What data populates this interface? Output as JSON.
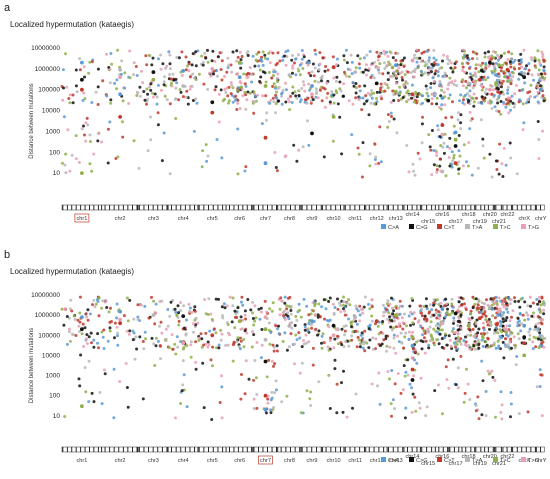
{
  "colors": {
    "C>A": "#5b9bd5",
    "C>G": "#111111",
    "C>T": "#c0392b",
    "T>A": "#b8b8b8",
    "T>C": "#8fb04a",
    "T>G": "#e8a0b4",
    "highlight": "#c0392b"
  },
  "chart_data": [
    {
      "panel_letter": "a",
      "type": "scatter",
      "title": "Localized hypermutation (kataegis)",
      "xlabel": "",
      "ylabel": "Distance between mutations",
      "y_scale": "log",
      "ylim": [
        1,
        10000000
      ],
      "y_ticks": [
        "10000000",
        "1000000",
        "100000",
        "10000",
        "1000",
        "100",
        "10"
      ],
      "legend_position": "bottom-right",
      "legend": [
        "C>A",
        "C>G",
        "C>T",
        "T>A",
        "T>C",
        "T>G"
      ],
      "categories": [
        "chr1",
        "chr2",
        "chr3",
        "chr4",
        "chr5",
        "chr6",
        "chr7",
        "chr8",
        "chr9",
        "chr10",
        "chr11",
        "chr12",
        "chr13",
        "chr14",
        "chr15",
        "chr16",
        "chr17",
        "chr18",
        "chr19",
        "chr20",
        "chr21",
        "chr22",
        "chrX",
        "chrY"
      ],
      "highlighted_category": "chr1",
      "series": [
        {
          "name": "C>A",
          "x": [
            "chr1",
            "chr2",
            "chr4",
            "chr6",
            "chr7",
            "chr9",
            "chr13",
            "chr16",
            "chr17",
            "chrY"
          ],
          "values": [
            2000000,
            60000,
            800000,
            400000,
            30,
            150000,
            1500000,
            40000,
            900,
            100000
          ]
        },
        {
          "name": "C>G",
          "x": [
            "chr1",
            "chr3",
            "chr5",
            "chr9",
            "chr12",
            "chr15",
            "chr17",
            "chr20",
            "chrX"
          ],
          "values": [
            300000,
            700000,
            25000,
            800,
            200000,
            30000,
            200,
            2000000,
            400000
          ]
        },
        {
          "name": "C>T",
          "x": [
            "chr1",
            "chr2",
            "chr5",
            "chr7",
            "chr10",
            "chr14",
            "chr16",
            "chr17",
            "chr19",
            "chr22"
          ],
          "values": [
            100000,
            5000,
            8000,
            500,
            1200000,
            60000,
            2000,
            30,
            300000,
            900000
          ]
        },
        {
          "name": "T>A",
          "x": [
            "chr2",
            "chr4",
            "chr8",
            "chr11",
            "chr16",
            "chr18",
            "chrX"
          ],
          "values": [
            900000,
            150000,
            500000,
            700000,
            12,
            200000,
            600000
          ]
        },
        {
          "name": "T>C",
          "x": [
            "chr1",
            "chr3",
            "chr6",
            "chr7",
            "chr10",
            "chr13",
            "chr17",
            "chr21"
          ],
          "values": [
            10,
            300000,
            2000000,
            150000,
            5000,
            80000,
            400,
            1500000
          ]
        },
        {
          "name": "T>G",
          "x": [
            "chr2",
            "chr5",
            "chr9",
            "chr14",
            "chr16",
            "chr20"
          ],
          "values": [
            400000,
            1000000,
            60000,
            2500000,
            700,
            100000
          ]
        }
      ]
    },
    {
      "panel_letter": "b",
      "type": "scatter",
      "title": "Localized hypermutation (kataegis)",
      "xlabel": "",
      "ylabel": "Distance between mutations",
      "y_scale": "log",
      "ylim": [
        1,
        10000000
      ],
      "y_ticks": [
        "10000000",
        "1000000",
        "100000",
        "10000",
        "1000",
        "100",
        "10"
      ],
      "legend_position": "bottom-right",
      "legend": [
        "C>A",
        "C>G",
        "C>T",
        "T>A",
        "T>C",
        "T>G"
      ],
      "categories": [
        "chr1",
        "chr2",
        "chr3",
        "chr4",
        "chr5",
        "chr6",
        "chr7",
        "chr8",
        "chr9",
        "chr10",
        "chr11",
        "chr12",
        "chr13",
        "chr14",
        "chr15",
        "chr16",
        "chr17",
        "chr18",
        "chr19",
        "chr20",
        "chr21",
        "chr22",
        "chrX",
        "chrY"
      ],
      "highlighted_category": "chr7",
      "series": [
        {
          "name": "C>A",
          "x": [
            "chr1",
            "chr2",
            "chr7",
            "chr9",
            "chr14",
            "chr16",
            "chrX"
          ],
          "values": [
            800000,
            1500000,
            20,
            500000,
            30000,
            2000000,
            300000
          ]
        },
        {
          "name": "C>G",
          "x": [
            "chr1",
            "chr4",
            "chr7",
            "chr10",
            "chr14",
            "chr17",
            "chrX"
          ],
          "values": [
            200000,
            900000,
            5000,
            300000,
            600,
            1200000,
            80000
          ]
        },
        {
          "name": "C>T",
          "x": [
            "chr2",
            "chr5",
            "chr7",
            "chr12",
            "chr14",
            "chr19",
            "chrX"
          ],
          "values": [
            400000,
            100000,
            100,
            500000,
            2000,
            700000,
            40000
          ]
        },
        {
          "name": "T>A",
          "x": [
            "chr3",
            "chr7",
            "chr8",
            "chr11",
            "chr15",
            "chr20"
          ],
          "values": [
            1000000,
            60000,
            300000,
            800000,
            150000,
            2500000
          ]
        },
        {
          "name": "T>C",
          "x": [
            "chr1",
            "chr6",
            "chr7",
            "chr13",
            "chr14",
            "chr18",
            "chrX"
          ],
          "values": [
            30,
            500000,
            200000,
            1000000,
            80000,
            300000,
            10000
          ]
        },
        {
          "name": "T>G",
          "x": [
            "chr2",
            "chr4",
            "chr7",
            "chr10",
            "chr16",
            "chr21"
          ],
          "values": [
            600000,
            40000,
            800000,
            100000,
            400000,
            1500000
          ]
        }
      ]
    }
  ]
}
